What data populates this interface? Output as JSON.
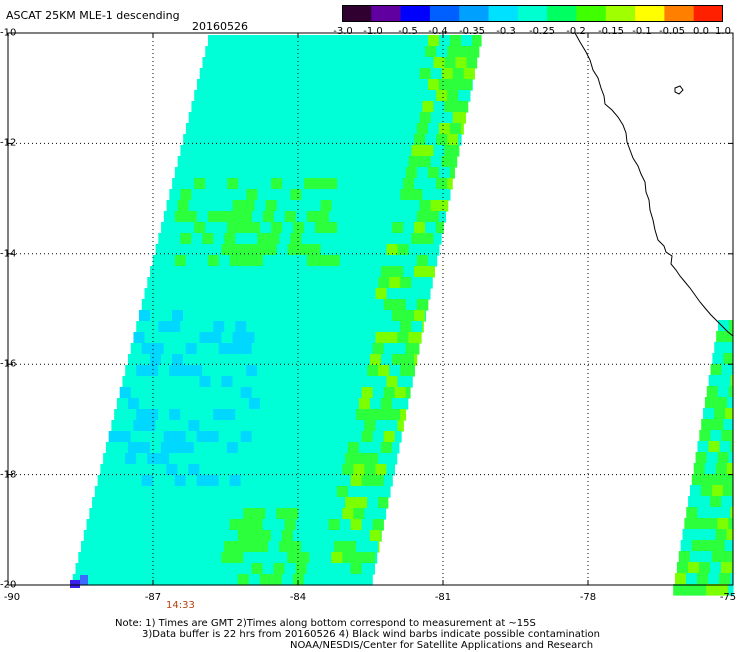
{
  "header": {
    "title": "ASCAT 25KM MLE-1 descending",
    "date": "20160526"
  },
  "colorbar": {
    "labels": [
      "-3.0",
      "-1.0",
      "-0.5",
      "-0.4",
      "-0.35",
      "-0.3",
      "-0.25",
      "-0.2",
      "-0.15",
      "-0.1",
      "-0.05",
      "0.0",
      "1.0"
    ],
    "colors": [
      "#300030",
      "#6000a0",
      "#0000ff",
      "#0060ff",
      "#00a0ff",
      "#00e0ff",
      "#00ffd0",
      "#00ff60",
      "#40ff00",
      "#a0ff00",
      "#ffff00",
      "#ff8000",
      "#ff2000"
    ]
  },
  "axes": {
    "lat_labels": [
      "-10",
      "-12",
      "-14",
      "-16",
      "-18",
      "-20"
    ],
    "lon_labels": [
      "-90",
      "-87",
      "-84",
      "-81",
      "-78",
      "-75"
    ]
  },
  "pass_time": "14:33",
  "notes": {
    "line1": "Note: 1) Times are GMT 2)Times along bottom correspond to measurement at ~15S",
    "line2": "3)Data buffer is 22 hrs from 20160526 4) Black wind barbs indicate possible contamination",
    "line3": "NOAA/NESDIS/Center for Satellite Applications and Research"
  },
  "map_colors": {
    "swath_base": "#00ffd6",
    "green": "#2cff3c",
    "lime": "#7cff00",
    "blue_light": "#00d8ff",
    "blue_deep": "#3a20e8",
    "coast": "#000000"
  }
}
